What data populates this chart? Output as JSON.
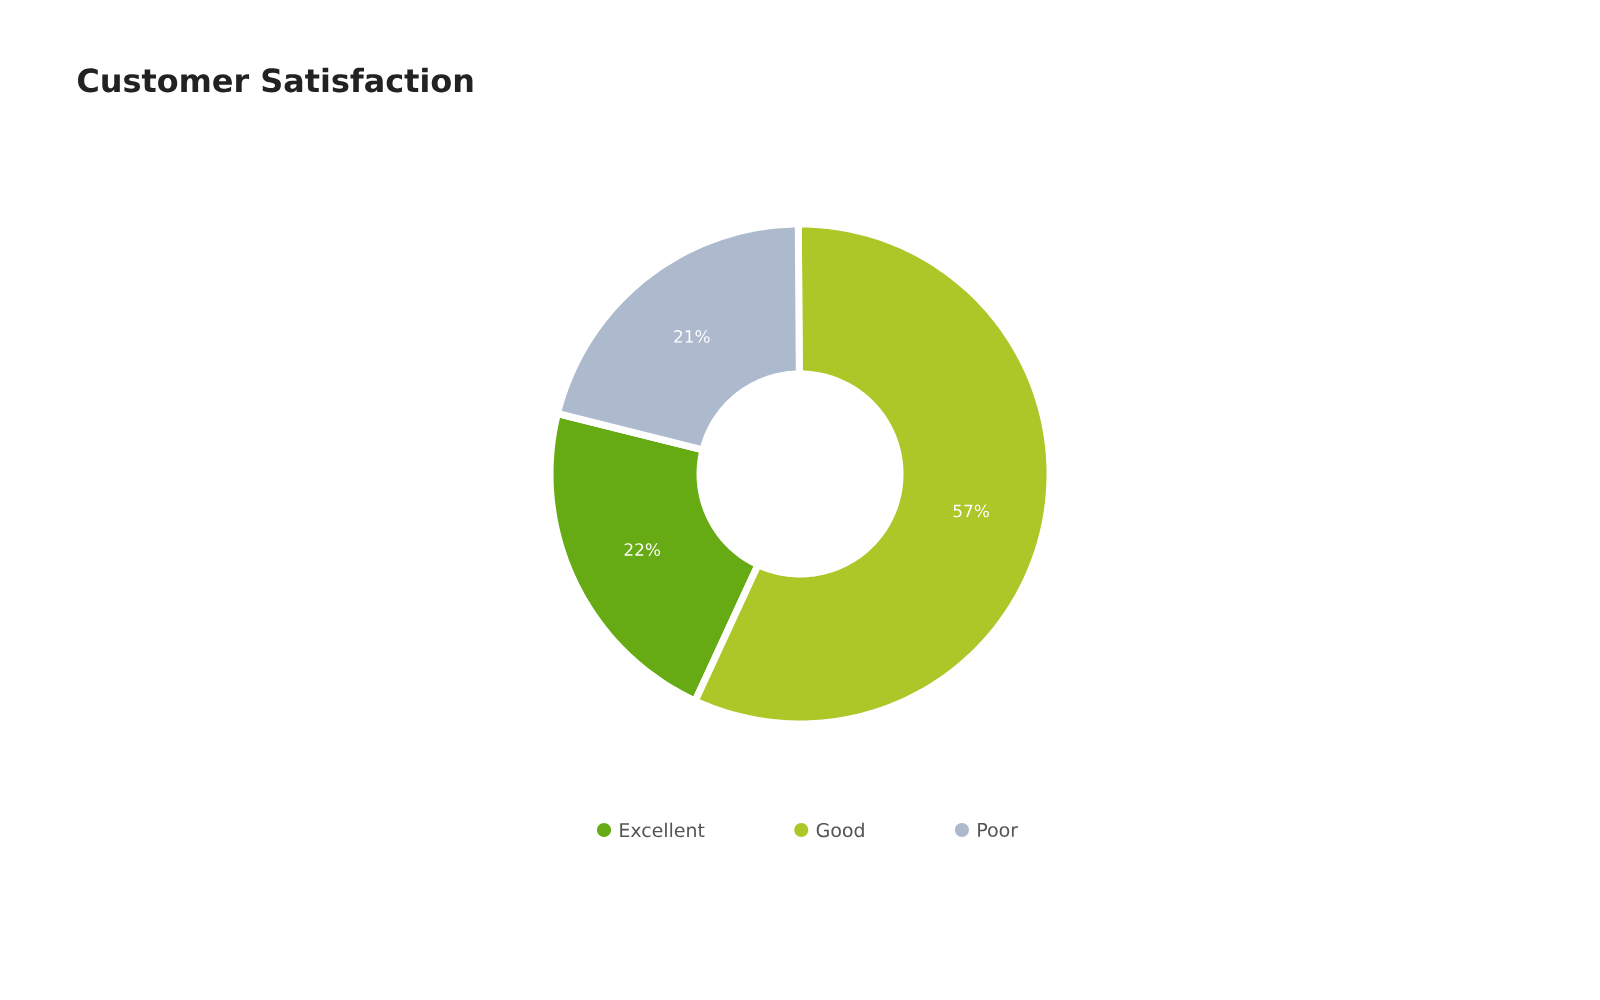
{
  "chart_data": {
    "type": "donut",
    "title": "Customer Satisfaction",
    "categories": [
      "Excellent",
      "Good",
      "Poor"
    ],
    "values": [
      22,
      57,
      21
    ],
    "colors": [
      "#66aa14",
      "#adc628",
      "#adb9cc"
    ],
    "value_labels": [
      "22%",
      "57%",
      "21%"
    ],
    "legend": "bottom"
  }
}
